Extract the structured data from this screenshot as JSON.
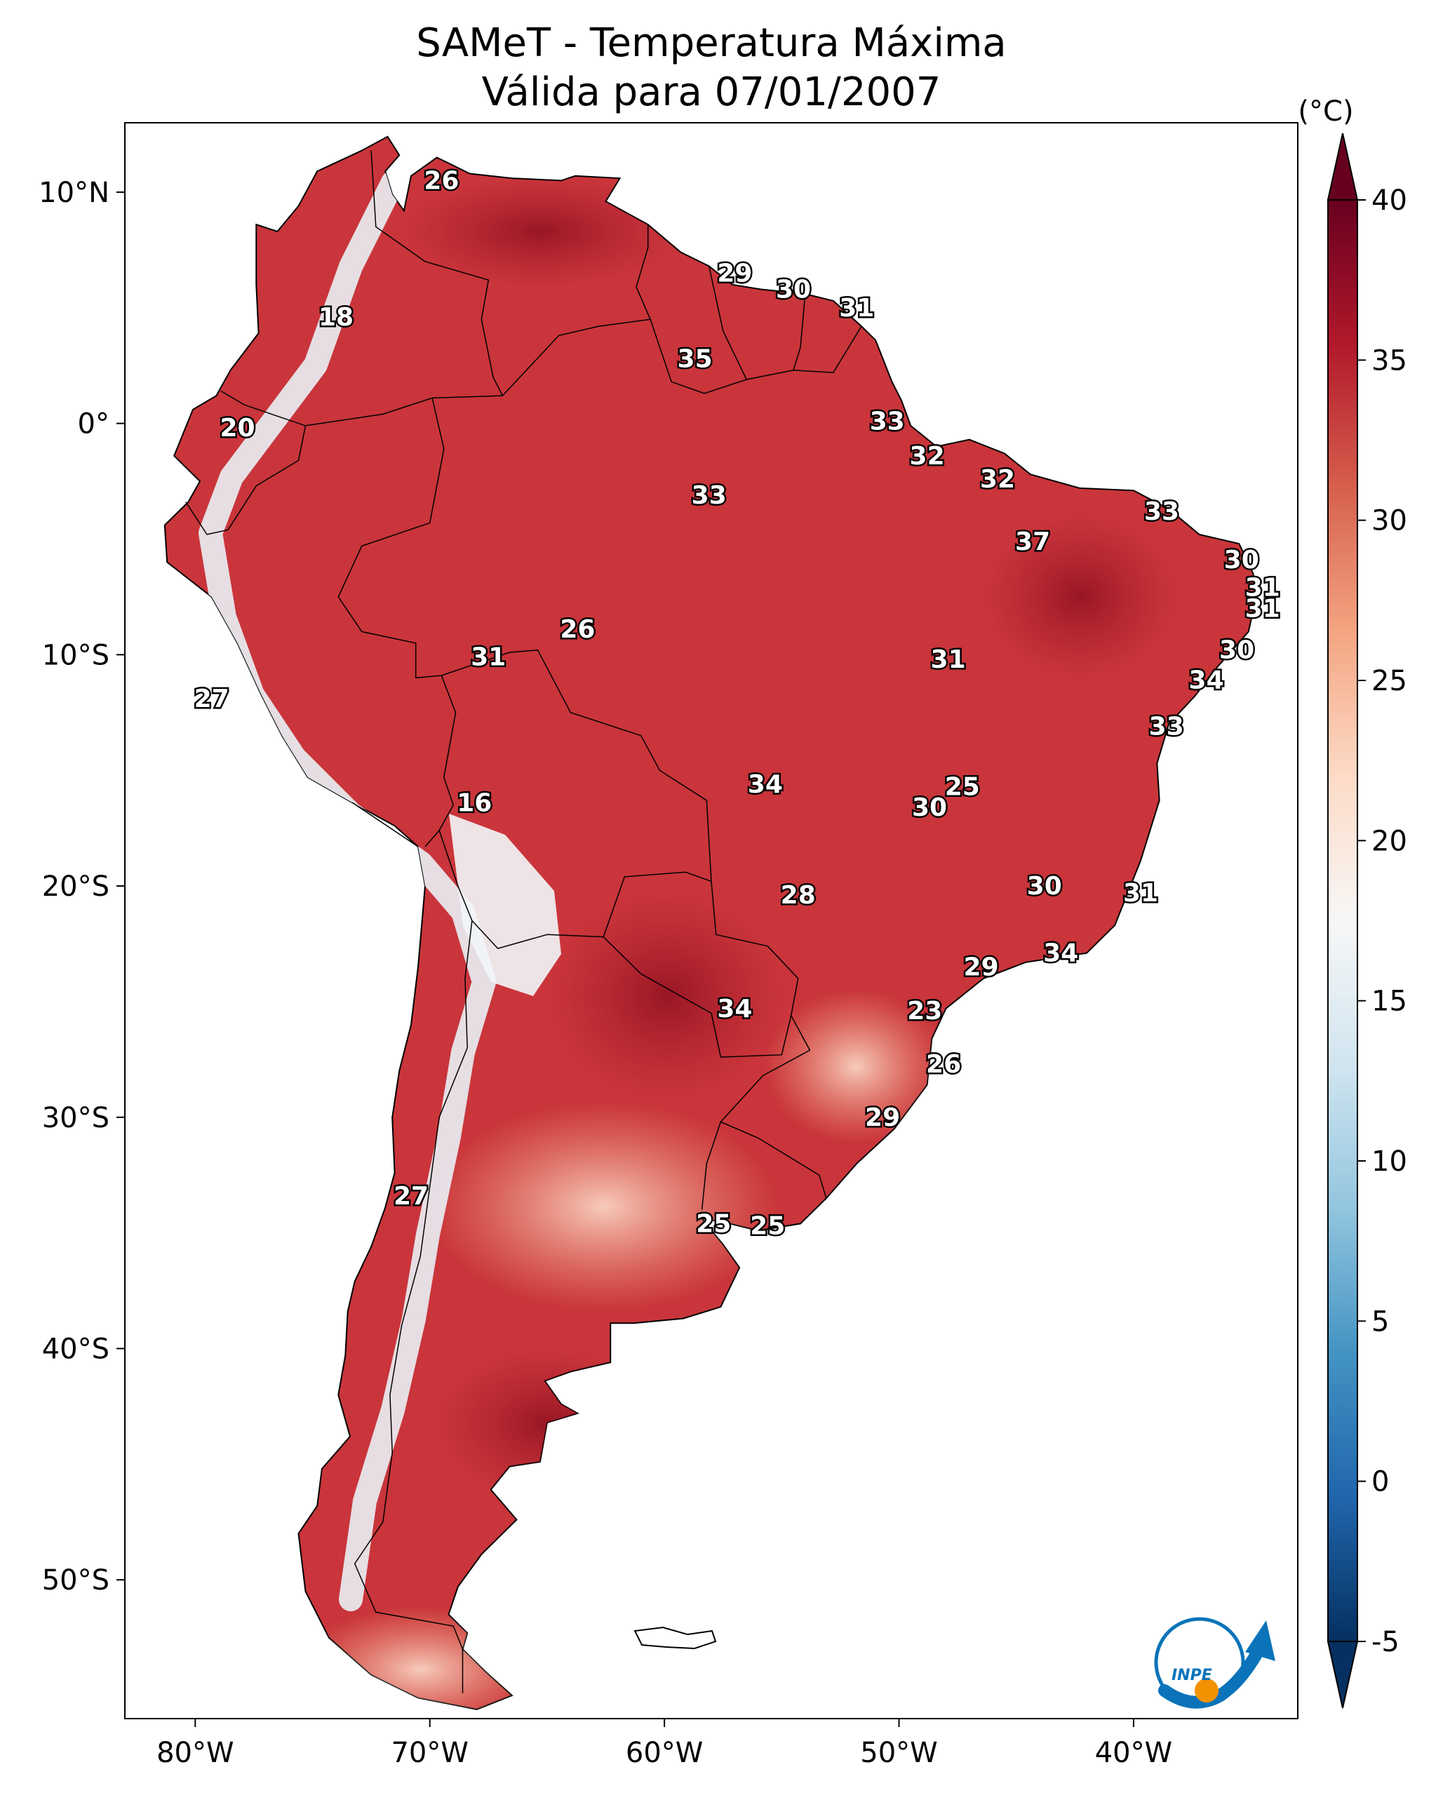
{
  "title": {
    "line1": "SAMeT - Temperatura Máxima",
    "line2": "Válida para 07/01/2007"
  },
  "map": {
    "lon_range": [
      -83,
      -33
    ],
    "lat_range": [
      -56,
      13
    ],
    "lon_ticks": [
      {
        "value": -80,
        "label": "80°W"
      },
      {
        "value": -70,
        "label": "70°W"
      },
      {
        "value": -60,
        "label": "60°W"
      },
      {
        "value": -50,
        "label": "50°W"
      },
      {
        "value": -40,
        "label": "40°W"
      }
    ],
    "lat_ticks": [
      {
        "value": 10,
        "label": "10°N"
      },
      {
        "value": 0,
        "label": "0°"
      },
      {
        "value": -10,
        "label": "10°S"
      },
      {
        "value": -20,
        "label": "20°S"
      },
      {
        "value": -30,
        "label": "30°S"
      },
      {
        "value": -40,
        "label": "40°S"
      },
      {
        "value": -50,
        "label": "50°S"
      }
    ],
    "contour_labels": [
      {
        "lon": -69.5,
        "lat": 10.5,
        "text": "26"
      },
      {
        "lon": -74,
        "lat": 4.6,
        "text": "18"
      },
      {
        "lon": -57,
        "lat": 6.5,
        "text": "29"
      },
      {
        "lon": -54.5,
        "lat": 5.8,
        "text": "30"
      },
      {
        "lon": -51.8,
        "lat": 5.0,
        "text": "31"
      },
      {
        "lon": -83,
        "lat": 0,
        "text": ""
      },
      {
        "lon": -58.7,
        "lat": 2.8,
        "text": "35"
      },
      {
        "lon": -78.2,
        "lat": -0.2,
        "text": "20"
      },
      {
        "lon": -50.5,
        "lat": 0.1,
        "text": "33"
      },
      {
        "lon": -48.8,
        "lat": -1.4,
        "text": "32"
      },
      {
        "lon": -45.8,
        "lat": -2.4,
        "text": "32"
      },
      {
        "lon": -38.8,
        "lat": -3.8,
        "text": "33"
      },
      {
        "lon": -58.1,
        "lat": -3.1,
        "text": "33"
      },
      {
        "lon": -44.3,
        "lat": -5.1,
        "text": "37"
      },
      {
        "lon": -35.4,
        "lat": -5.9,
        "text": "30"
      },
      {
        "lon": -34.5,
        "lat": -7.1,
        "text": "31"
      },
      {
        "lon": -34.5,
        "lat": -8.0,
        "text": "31"
      },
      {
        "lon": -35.6,
        "lat": -9.8,
        "text": "30"
      },
      {
        "lon": -36.9,
        "lat": -11.1,
        "text": "34"
      },
      {
        "lon": -38.6,
        "lat": -13.1,
        "text": "33"
      },
      {
        "lon": -63.7,
        "lat": -8.9,
        "text": "26"
      },
      {
        "lon": -67.5,
        "lat": -10.1,
        "text": "31"
      },
      {
        "lon": -47.9,
        "lat": -10.2,
        "text": "31"
      },
      {
        "lon": -79.3,
        "lat": -11.9,
        "text": "27"
      },
      {
        "lon": -55.7,
        "lat": -15.6,
        "text": "34"
      },
      {
        "lon": -47.3,
        "lat": -15.7,
        "text": "25"
      },
      {
        "lon": -48.7,
        "lat": -16.6,
        "text": "30"
      },
      {
        "lon": -68.1,
        "lat": -16.4,
        "text": "16"
      },
      {
        "lon": -43.8,
        "lat": -20.0,
        "text": "30"
      },
      {
        "lon": -39.7,
        "lat": -20.3,
        "text": "31"
      },
      {
        "lon": -54.3,
        "lat": -20.4,
        "text": "28"
      },
      {
        "lon": -43.1,
        "lat": -22.9,
        "text": "34"
      },
      {
        "lon": -46.5,
        "lat": -23.5,
        "text": "29"
      },
      {
        "lon": -57.0,
        "lat": -25.3,
        "text": "34"
      },
      {
        "lon": -48.9,
        "lat": -25.4,
        "text": "23"
      },
      {
        "lon": -48.1,
        "lat": -27.7,
        "text": "26"
      },
      {
        "lon": -50.7,
        "lat": -30.0,
        "text": "29"
      },
      {
        "lon": -70.8,
        "lat": -33.4,
        "text": "27"
      },
      {
        "lon": -57.9,
        "lat": -34.6,
        "text": "25"
      },
      {
        "lon": -55.6,
        "lat": -34.7,
        "text": "25"
      }
    ]
  },
  "colorbar": {
    "unit": "(°C)",
    "range": [
      -5,
      40
    ],
    "ticks": [
      {
        "value": 40,
        "label": "40"
      },
      {
        "value": 35,
        "label": "35"
      },
      {
        "value": 30,
        "label": "30"
      },
      {
        "value": 25,
        "label": "25"
      },
      {
        "value": 20,
        "label": "20"
      },
      {
        "value": 15,
        "label": "15"
      },
      {
        "value": 10,
        "label": "10"
      },
      {
        "value": 5,
        "label": "5"
      },
      {
        "value": 0,
        "label": "0"
      },
      {
        "value": -5,
        "label": "-5"
      }
    ],
    "colors": [
      "#053061",
      "#2166ac",
      "#4393c3",
      "#92c5de",
      "#d1e5f0",
      "#f7f7f7",
      "#fddbc7",
      "#f4a582",
      "#d6604d",
      "#b2182b",
      "#67001f"
    ]
  },
  "logo": {
    "text": "INPE",
    "colors": {
      "blue": "#0a73b9",
      "orange": "#f39200"
    }
  }
}
